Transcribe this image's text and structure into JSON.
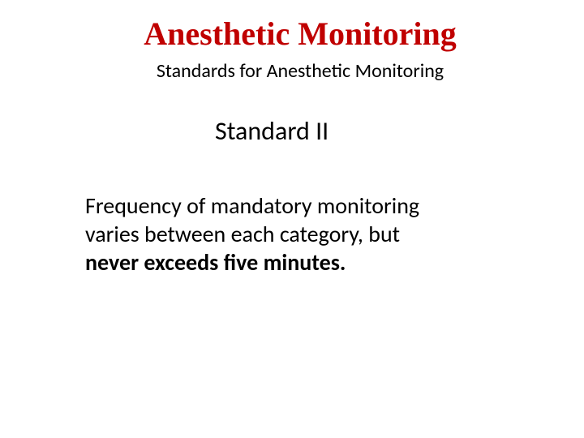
{
  "slide": {
    "title": "Anesthetic Monitoring",
    "subtitle": "Standards for Anesthetic Monitoring",
    "section_heading": "Standard II",
    "body_line1": "Frequency of mandatory monitoring",
    "body_line2": "varies between each category, but",
    "body_line3_bold": "never exceeds five minutes."
  },
  "colors": {
    "title_color": "#c00000",
    "text_color": "#000000",
    "background_color": "#ffffff"
  },
  "typography": {
    "title_font": "Times New Roman",
    "body_font": "Calibri",
    "title_fontsize": 40,
    "subtitle_fontsize": 24,
    "section_fontsize": 32,
    "body_fontsize": 28
  }
}
